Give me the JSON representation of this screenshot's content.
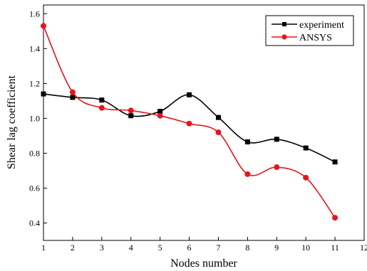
{
  "chart_data": {
    "type": "line",
    "xlabel": "Nodes number",
    "ylabel": "Shear lag coefficient",
    "xlim": [
      1,
      12
    ],
    "ylim": [
      0.3,
      1.65
    ],
    "x_ticks": [
      1,
      2,
      3,
      4,
      5,
      6,
      7,
      8,
      9,
      10,
      11,
      12
    ],
    "y_ticks": [
      0.4,
      0.6,
      0.8,
      1.0,
      1.2,
      1.4,
      1.6
    ],
    "y_tick_labels": [
      "0.4",
      "0.6",
      "0.8",
      "1.0",
      "1.2",
      "1.4",
      "1.6"
    ],
    "grid": false,
    "legend_position": "top-right",
    "x": [
      1,
      2,
      3,
      4,
      5,
      6,
      7,
      8,
      9,
      10,
      11
    ],
    "series": [
      {
        "name": "experiment",
        "color": "#000000",
        "marker": "square",
        "values": [
          1.14,
          1.12,
          1.105,
          1.015,
          1.04,
          1.135,
          1.005,
          0.865,
          0.88,
          0.83,
          0.75
        ]
      },
      {
        "name": "ANSYS",
        "color": "#e8141c",
        "marker": "circle",
        "values": [
          1.53,
          1.15,
          1.06,
          1.045,
          1.015,
          0.97,
          0.92,
          0.68,
          0.72,
          0.66,
          0.43
        ]
      }
    ]
  }
}
